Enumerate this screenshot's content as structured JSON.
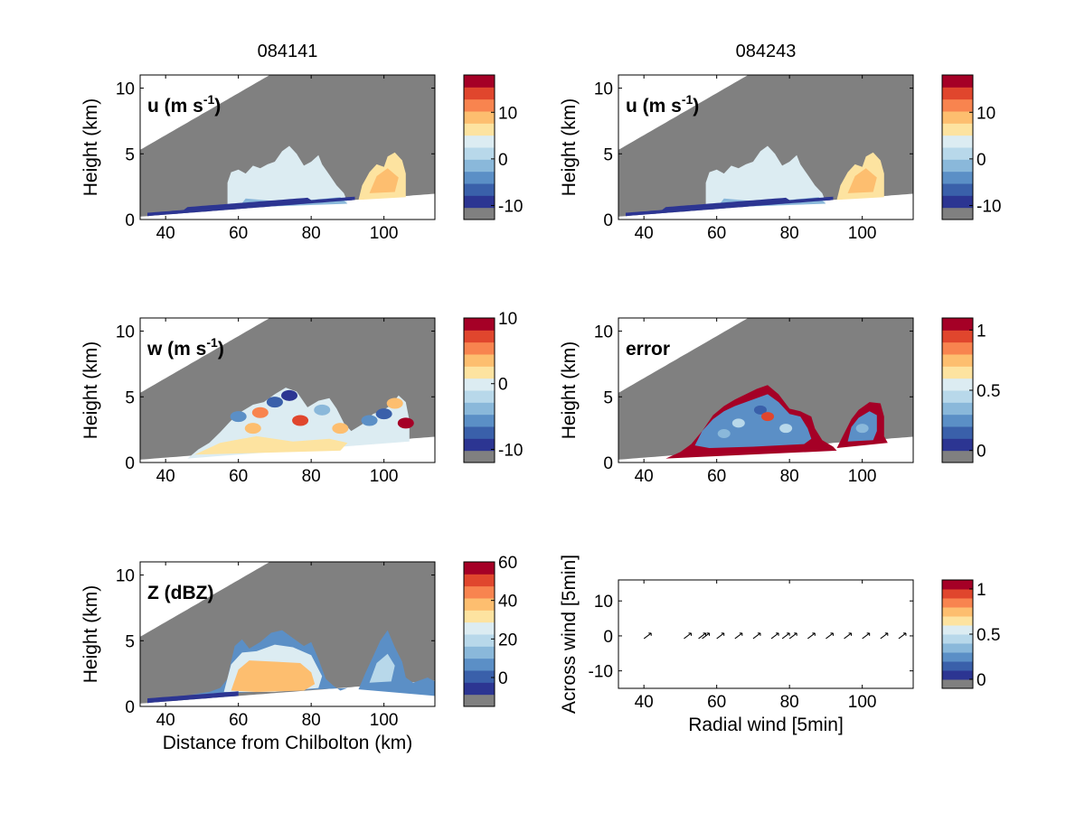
{
  "column_titles": [
    "084141",
    "084243"
  ],
  "colors": {
    "grey": "#808080",
    "palette": [
      "#2c3592",
      "#3a60aa",
      "#5b8fc6",
      "#8ab8da",
      "#b8d8ea",
      "#dcecf2",
      "#fde3a0",
      "#fdbe6f",
      "#f8844f",
      "#e0462d",
      "#a50026"
    ]
  },
  "chart_data": [
    {
      "id": "u-084141",
      "type": "heatmap",
      "panel_label": "u (m s",
      "panel_label_sup": "-1",
      "panel_label_end": ")",
      "xlim": [
        33,
        114
      ],
      "ylim": [
        0,
        11
      ],
      "xticks": [
        "40",
        "60",
        "80",
        "100"
      ],
      "yticks": [
        "0",
        "5",
        "10"
      ],
      "ylabel": "Height (km)",
      "xlabel": "",
      "colorbar_ticks": [
        "10",
        "0",
        "-10"
      ],
      "colorbar_tick_values": [
        10,
        0,
        -10
      ],
      "colorbar_range": [
        -13,
        18
      ]
    },
    {
      "id": "u-084243",
      "type": "heatmap",
      "panel_label": "u (m s",
      "panel_label_sup": "-1",
      "panel_label_end": ")",
      "xlim": [
        33,
        114
      ],
      "ylim": [
        0,
        11
      ],
      "xticks": [
        "40",
        "60",
        "80",
        "100"
      ],
      "yticks": [
        "0",
        "5",
        "10"
      ],
      "ylabel": "Height (km)",
      "xlabel": "",
      "colorbar_ticks": [
        "10",
        "0",
        "-10"
      ],
      "colorbar_tick_values": [
        10,
        0,
        -10
      ],
      "colorbar_range": [
        -13,
        18
      ]
    },
    {
      "id": "w-084141",
      "type": "heatmap",
      "panel_label": "w (m s",
      "panel_label_sup": "-1",
      "panel_label_end": ")",
      "xlim": [
        33,
        114
      ],
      "ylim": [
        0,
        11
      ],
      "xticks": [
        "40",
        "60",
        "80",
        "100"
      ],
      "yticks": [
        "0",
        "5",
        "10"
      ],
      "ylabel": "Height (km)",
      "xlabel": "",
      "colorbar_ticks": [
        "10",
        "0",
        "-10"
      ],
      "colorbar_tick_values": [
        10,
        0,
        -10
      ],
      "colorbar_range": [
        -12,
        10
      ]
    },
    {
      "id": "error-084243",
      "type": "heatmap",
      "panel_label": "error",
      "xlim": [
        33,
        114
      ],
      "ylim": [
        0,
        11
      ],
      "xticks": [
        "40",
        "60",
        "80",
        "100"
      ],
      "yticks": [
        "0",
        "5",
        "10"
      ],
      "ylabel": "Height (km)",
      "xlabel": "",
      "colorbar_ticks": [
        "1",
        "0.5",
        "0"
      ],
      "colorbar_tick_values": [
        1,
        0.5,
        0
      ],
      "colorbar_range": [
        -0.1,
        1.1
      ]
    },
    {
      "id": "Z-084141",
      "type": "heatmap",
      "panel_label": "Z (dBZ)",
      "xlim": [
        33,
        114
      ],
      "ylim": [
        0,
        11
      ],
      "xticks": [
        "40",
        "60",
        "80",
        "100"
      ],
      "yticks": [
        "0",
        "5",
        "10"
      ],
      "ylabel": "Height (km)",
      "xlabel": "Distance from Chilbolton (km)",
      "colorbar_ticks": [
        "60",
        "40",
        "20",
        "0"
      ],
      "colorbar_tick_values": [
        60,
        40,
        20,
        0
      ],
      "colorbar_range": [
        -15,
        60
      ]
    },
    {
      "id": "wind-vectors",
      "type": "scatter",
      "xlim": [
        33,
        114
      ],
      "ylim": [
        -15,
        16
      ],
      "xticks": [
        "40",
        "60",
        "80",
        "100"
      ],
      "yticks": [
        "-10",
        "0",
        "10"
      ],
      "ylabel": "Across wind [5min]",
      "xlabel": "Radial wind [5min]",
      "arrows_x": [
        41,
        52,
        56,
        57,
        61,
        66,
        71,
        76,
        79,
        81,
        86,
        91,
        96,
        101,
        106,
        111
      ],
      "colorbar_ticks": [
        "1",
        "0.5",
        "0"
      ],
      "colorbar_tick_values": [
        1,
        0.5,
        0
      ],
      "colorbar_range": [
        -0.1,
        1.1
      ]
    }
  ]
}
